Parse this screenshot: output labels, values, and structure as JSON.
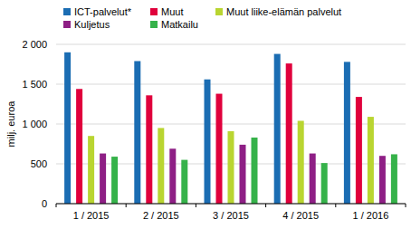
{
  "chart_data": {
    "type": "bar",
    "y_label": "milj. euroa",
    "categories": [
      "1 / 2015",
      "2 / 2015",
      "3 / 2015",
      "4 / 2015",
      "1 / 2016"
    ],
    "series": [
      {
        "name": "ICT-palvelut*",
        "color": "#1b6db3",
        "values": [
          1900,
          1790,
          1560,
          1880,
          1780
        ]
      },
      {
        "name": "Muut",
        "color": "#e0003c",
        "values": [
          1440,
          1360,
          1380,
          1760,
          1340
        ]
      },
      {
        "name": "Muut liike-elämän palvelut",
        "color": "#b9d531",
        "values": [
          850,
          950,
          910,
          1040,
          1090
        ]
      },
      {
        "name": "Kuljetus",
        "color": "#8e1f85",
        "values": [
          630,
          690,
          740,
          630,
          600
        ]
      },
      {
        "name": "Matkailu",
        "color": "#36b24a",
        "values": [
          590,
          550,
          830,
          510,
          620
        ]
      }
    ],
    "ylim": [
      0,
      2000
    ],
    "yticks": [
      0,
      500,
      {
        "value": 1000,
        "label": "1 000"
      },
      {
        "value": 1500,
        "label": "1 500"
      },
      {
        "value": 2000,
        "label": "2 000"
      }
    ],
    "grid": true,
    "legend": "top"
  }
}
